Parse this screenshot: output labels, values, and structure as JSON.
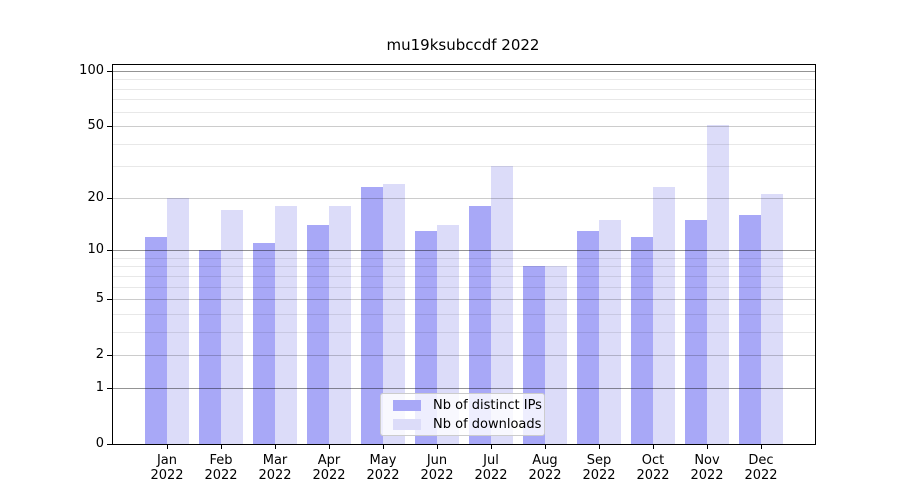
{
  "title": "mu19ksubccdf 2022",
  "chart_data": {
    "type": "bar",
    "title": "mu19ksubccdf 2022",
    "categories": [
      "Jan",
      "Feb",
      "Mar",
      "Apr",
      "May",
      "Jun",
      "Jul",
      "Aug",
      "Sep",
      "Oct",
      "Nov",
      "Dec"
    ],
    "x_sublabel": "2022",
    "series": [
      {
        "name": "Nb of distinct IPs",
        "color": "#a8a8f7",
        "values": [
          12,
          10,
          11,
          14,
          23,
          13,
          18,
          8,
          13,
          12,
          15,
          16
        ]
      },
      {
        "name": "Nb of downloads",
        "color": "#dcdcf9",
        "values": [
          20,
          17,
          18,
          18,
          24,
          14,
          30,
          8,
          15,
          23,
          51,
          21
        ]
      }
    ],
    "yscale": "log1p",
    "ylim": [
      0,
      100
    ],
    "y_tick_values": [
      100,
      50,
      20,
      10,
      5,
      2,
      1,
      0
    ],
    "y_decade_gridlines": [
      1,
      10,
      100
    ],
    "y_mid_gridlines": [
      2,
      5,
      20,
      50
    ],
    "y_minor_gridlines": [
      3,
      4,
      6,
      7,
      8,
      9,
      30,
      40,
      60,
      70,
      80,
      90
    ],
    "grid": true,
    "legend_position": "lower center"
  },
  "colors": {
    "background": "#ffffff",
    "bar_distinct_ips": "#a8a8f7",
    "bar_downloads": "#dcdcf9",
    "axis": "#000000",
    "text": "#000000",
    "legend_border": "#cccccc"
  }
}
